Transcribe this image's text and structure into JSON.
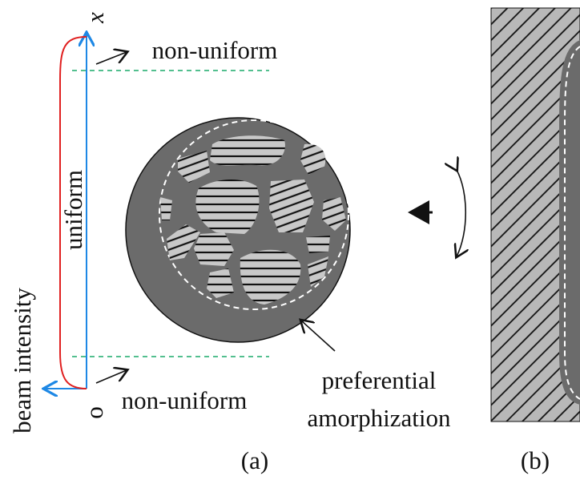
{
  "panel_a": {
    "axis_label_x": "x",
    "axis_label_origin": "o",
    "top_region": "non-uniform",
    "middle_region": "uniform",
    "bottom_region": "non-uniform",
    "intensity_label": "beam intensity",
    "annotation": [
      "preferential",
      "amorphization"
    ],
    "label": "(a)"
  },
  "panel_b": {
    "label": "(b)"
  }
}
